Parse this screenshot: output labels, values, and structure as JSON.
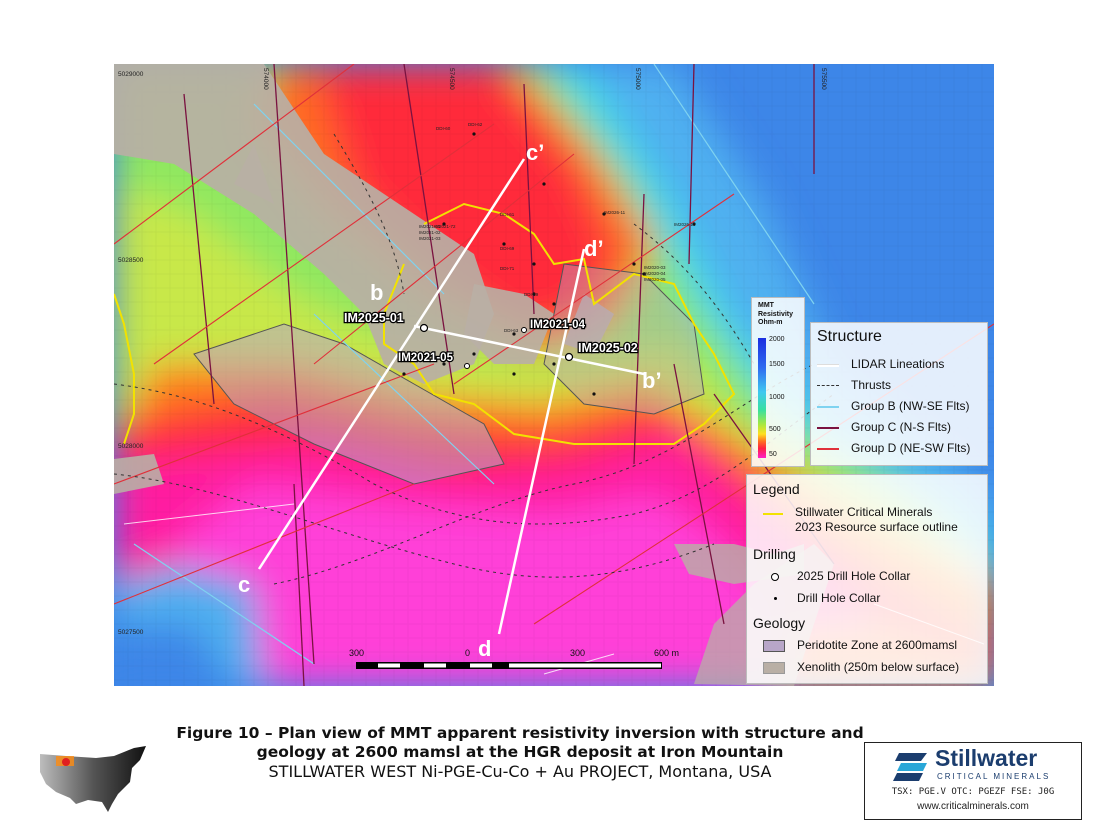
{
  "map": {
    "northings": [
      "5029000",
      "5028500",
      "5028000",
      "5027500"
    ],
    "eastings": [
      "574000",
      "574500",
      "575000",
      "575500"
    ],
    "sections": {
      "b": "b",
      "b_prime": "b’",
      "c": "c",
      "c_prime": "c’",
      "d": "d",
      "d_prime": "d’"
    },
    "collars_2025": [
      "IM2025-01",
      "IM2025-02"
    ],
    "holes_2021": [
      "IM2021-04",
      "IM2021-05"
    ],
    "small_hole_labels": [
      "IM2026-11",
      "IM2026-10",
      "IM2020-03",
      "IM2020-04",
      "IM2020-05",
      "IM2021-01",
      "IM2021-02",
      "IM2021-03",
      "IM2021-72",
      "DDI-61",
      "DDI-69",
      "DDI-71",
      "DDI-59",
      "DDI-60",
      "DDI-62",
      "DDI-63"
    ],
    "scale": {
      "labels": [
        "300",
        "0",
        "300",
        "600 m"
      ]
    }
  },
  "resistivity_legend": {
    "title_lines": [
      "MMT",
      "Resistivity",
      "Ohm-m"
    ],
    "ticks": [
      "2000",
      "1500",
      "1000",
      "500",
      "50"
    ]
  },
  "structure_legend": {
    "title": "Structure",
    "items": [
      {
        "label": "LIDAR Lineations",
        "color": "#ffffff",
        "style": "solid"
      },
      {
        "label": "Thrusts",
        "color": "#333333",
        "style": "thrust"
      },
      {
        "label": "Group B (NW-SE Flts)",
        "color": "#7fd3f0",
        "style": "solid"
      },
      {
        "label": "Group C (N-S Flts)",
        "color": "#7a1240",
        "style": "solid"
      },
      {
        "label": "Group D (NE-SW Flts)",
        "color": "#e0303a",
        "style": "solid"
      }
    ]
  },
  "main_legend": {
    "title": "Legend",
    "resource_label_line1": "Stillwater Critical Minerals",
    "resource_label_line2": "2023 Resource surface outline",
    "resource_color": "#f2e200",
    "drilling_title": "Drilling",
    "collar_2025_label": "2025 Drill Hole Collar",
    "collar_label": "Drill Hole Collar",
    "geology_title": "Geology",
    "peridotite_label": "Peridotite Zone at 2600mamsl",
    "peridotite_color": "#b8a6c8",
    "xenolith_label": "Xenolith (250m below surface)",
    "xenolith_color": "#b9afa5"
  },
  "caption": {
    "line1": "Figure 10  –  Plan view of MMT apparent resistivity inversion with structure and",
    "line2": "geology at 2600 mamsl at the HGR deposit at Iron Mountain",
    "line3": "STILLWATER WEST Ni-PGE-Cu-Co + Au PROJECT, Montana, USA"
  },
  "logo": {
    "name": "Stillwater",
    "sub": "CRITICAL MINERALS",
    "tickers": "TSX: PGE.V   OTC: PGEZF   FSE: J0G",
    "url": "www.criticalminerals.com",
    "color": "#1b3d6e"
  }
}
